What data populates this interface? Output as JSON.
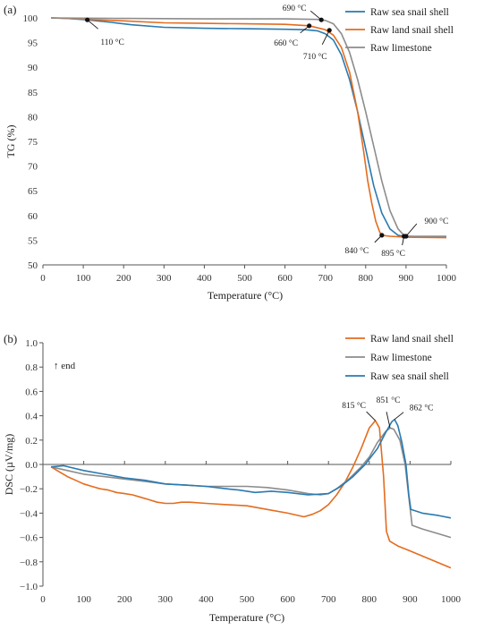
{
  "chart_data": [
    {
      "type": "line",
      "panel_label": "(a)",
      "xlabel": "Temperature (°C)",
      "ylabel": "TG (%)",
      "xlim": [
        0,
        1000
      ],
      "ylim": [
        50,
        100
      ],
      "xticks": [
        0,
        100,
        200,
        300,
        400,
        500,
        600,
        700,
        800,
        900,
        1000
      ],
      "yticks": [
        50,
        55,
        60,
        65,
        70,
        75,
        80,
        85,
        90,
        95,
        100
      ],
      "grid": false,
      "legend_position": "top-right",
      "series": [
        {
          "name": "Raw sea snail shell",
          "color": "#2a7ab0",
          "points": [
            [
              20,
              100
            ],
            [
              60,
              99.9
            ],
            [
              110,
              99.6
            ],
            [
              170,
              99.1
            ],
            [
              220,
              98.6
            ],
            [
              300,
              98.1
            ],
            [
              400,
              97.9
            ],
            [
              500,
              97.8
            ],
            [
              600,
              97.7
            ],
            [
              650,
              97.6
            ],
            [
              680,
              97.4
            ],
            [
              700,
              96.8
            ],
            [
              720,
              95.5
            ],
            [
              740,
              92.5
            ],
            [
              760,
              87.5
            ],
            [
              780,
              81
            ],
            [
              800,
              73.5
            ],
            [
              820,
              66
            ],
            [
              840,
              60.5
            ],
            [
              860,
              57.3
            ],
            [
              880,
              56
            ],
            [
              895,
              55.8
            ],
            [
              950,
              55.7
            ],
            [
              1000,
              55.7
            ]
          ]
        },
        {
          "name": "Raw land snail shell",
          "color": "#e46c1f",
          "points": [
            [
              20,
              100
            ],
            [
              60,
              99.9
            ],
            [
              110,
              99.7
            ],
            [
              200,
              99.4
            ],
            [
              300,
              99
            ],
            [
              400,
              98.9
            ],
            [
              500,
              98.8
            ],
            [
              600,
              98.7
            ],
            [
              660,
              98.4
            ],
            [
              700,
              97.6
            ],
            [
              720,
              96.5
            ],
            [
              740,
              94
            ],
            [
              760,
              89
            ],
            [
              780,
              81
            ],
            [
              795,
              73
            ],
            [
              805,
              67
            ],
            [
              815,
              62.5
            ],
            [
              825,
              58.8
            ],
            [
              835,
              56.6
            ],
            [
              840,
              56
            ],
            [
              860,
              55.8
            ],
            [
              900,
              55.6
            ],
            [
              1000,
              55.5
            ]
          ]
        },
        {
          "name": "Raw limestone",
          "color": "#8c8c8c",
          "points": [
            [
              20,
              100
            ],
            [
              200,
              99.9
            ],
            [
              400,
              99.8
            ],
            [
              600,
              99.8
            ],
            [
              680,
              99.7
            ],
            [
              700,
              99.5
            ],
            [
              720,
              98.8
            ],
            [
              740,
              96.8
            ],
            [
              760,
              93
            ],
            [
              780,
              87.5
            ],
            [
              800,
              81
            ],
            [
              820,
              74
            ],
            [
              840,
              67
            ],
            [
              860,
              61
            ],
            [
              880,
              57.3
            ],
            [
              895,
              56
            ],
            [
              900,
              55.8
            ],
            [
              950,
              55.8
            ],
            [
              1000,
              55.8
            ]
          ]
        }
      ],
      "annotations": [
        {
          "label": "110 °C",
          "x": 110,
          "y": 99.6
        },
        {
          "label": "690 °C",
          "x": 690,
          "y": 99.6
        },
        {
          "label": "660 °C",
          "x": 660,
          "y": 98.4
        },
        {
          "label": "710 °C",
          "x": 710,
          "y": 97.5
        },
        {
          "label": "840 °C",
          "x": 840,
          "y": 56
        },
        {
          "label": "895 °C",
          "x": 895,
          "y": 55.8
        },
        {
          "label": "900 °C",
          "x": 900,
          "y": 55.8
        }
      ]
    },
    {
      "type": "line",
      "panel_label": "(b)",
      "xlabel": "Temperature (°C)",
      "ylabel": "DSC (µV/mg)",
      "xlim": [
        0,
        1000
      ],
      "ylim": [
        -1.0,
        1.0
      ],
      "xticks": [
        0,
        100,
        200,
        300,
        400,
        500,
        600,
        700,
        800,
        900,
        1000
      ],
      "yticks": [
        "−1.0",
        "−0.8",
        "−0.6",
        "−0.4",
        "−0.2",
        "0.0",
        "0.2",
        "0.4",
        "0.6",
        "0.8",
        "1.0"
      ],
      "grid": false,
      "legend_position": "top-right",
      "inner_label": "↑ end",
      "series": [
        {
          "name": "Raw land snail shell",
          "color": "#e46c1f",
          "points": [
            [
              20,
              -0.02
            ],
            [
              40,
              -0.06
            ],
            [
              60,
              -0.1
            ],
            [
              80,
              -0.13
            ],
            [
              100,
              -0.16
            ],
            [
              120,
              -0.18
            ],
            [
              140,
              -0.2
            ],
            [
              160,
              -0.21
            ],
            [
              180,
              -0.23
            ],
            [
              200,
              -0.24
            ],
            [
              220,
              -0.25
            ],
            [
              240,
              -0.27
            ],
            [
              260,
              -0.29
            ],
            [
              280,
              -0.31
            ],
            [
              300,
              -0.32
            ],
            [
              320,
              -0.32
            ],
            [
              340,
              -0.31
            ],
            [
              360,
              -0.31
            ],
            [
              400,
              -0.32
            ],
            [
              450,
              -0.33
            ],
            [
              500,
              -0.34
            ],
            [
              550,
              -0.37
            ],
            [
              600,
              -0.4
            ],
            [
              640,
              -0.43
            ],
            [
              660,
              -0.41
            ],
            [
              680,
              -0.38
            ],
            [
              700,
              -0.33
            ],
            [
              720,
              -0.25
            ],
            [
              740,
              -0.15
            ],
            [
              760,
              -0.02
            ],
            [
              780,
              0.13
            ],
            [
              800,
              0.3
            ],
            [
              815,
              0.36
            ],
            [
              825,
              0.3
            ],
            [
              835,
              -0.1
            ],
            [
              842,
              -0.55
            ],
            [
              850,
              -0.63
            ],
            [
              870,
              -0.67
            ],
            [
              900,
              -0.71
            ],
            [
              950,
              -0.78
            ],
            [
              1000,
              -0.85
            ]
          ]
        },
        {
          "name": "Raw limestone",
          "color": "#8c8c8c",
          "points": [
            [
              20,
              -0.02
            ],
            [
              60,
              -0.05
            ],
            [
              100,
              -0.08
            ],
            [
              150,
              -0.1
            ],
            [
              200,
              -0.12
            ],
            [
              250,
              -0.14
            ],
            [
              300,
              -0.16
            ],
            [
              350,
              -0.17
            ],
            [
              400,
              -0.18
            ],
            [
              450,
              -0.18
            ],
            [
              500,
              -0.18
            ],
            [
              550,
              -0.19
            ],
            [
              600,
              -0.21
            ],
            [
              650,
              -0.24
            ],
            [
              680,
              -0.25
            ],
            [
              700,
              -0.24
            ],
            [
              720,
              -0.2
            ],
            [
              750,
              -0.12
            ],
            [
              780,
              -0.02
            ],
            [
              800,
              0.06
            ],
            [
              820,
              0.18
            ],
            [
              840,
              0.27
            ],
            [
              851,
              0.3
            ],
            [
              860,
              0.29
            ],
            [
              875,
              0.2
            ],
            [
              888,
              0.0
            ],
            [
              898,
              -0.3
            ],
            [
              905,
              -0.5
            ],
            [
              930,
              -0.53
            ],
            [
              970,
              -0.57
            ],
            [
              1000,
              -0.6
            ]
          ]
        },
        {
          "name": "Raw sea snail shell",
          "color": "#2a7ab0",
          "points": [
            [
              20,
              -0.02
            ],
            [
              50,
              -0.01
            ],
            [
              100,
              -0.05
            ],
            [
              150,
              -0.08
            ],
            [
              200,
              -0.11
            ],
            [
              250,
              -0.13
            ],
            [
              300,
              -0.16
            ],
            [
              350,
              -0.17
            ],
            [
              400,
              -0.18
            ],
            [
              450,
              -0.2
            ],
            [
              480,
              -0.21
            ],
            [
              520,
              -0.23
            ],
            [
              560,
              -0.22
            ],
            [
              600,
              -0.23
            ],
            [
              650,
              -0.25
            ],
            [
              700,
              -0.24
            ],
            [
              730,
              -0.18
            ],
            [
              760,
              -0.1
            ],
            [
              790,
              0.0
            ],
            [
              820,
              0.13
            ],
            [
              840,
              0.26
            ],
            [
              855,
              0.35
            ],
            [
              862,
              0.37
            ],
            [
              870,
              0.32
            ],
            [
              880,
              0.18
            ],
            [
              890,
              0.0
            ],
            [
              897,
              -0.25
            ],
            [
              902,
              -0.37
            ],
            [
              930,
              -0.4
            ],
            [
              970,
              -0.42
            ],
            [
              1000,
              -0.44
            ]
          ]
        }
      ],
      "annotations": [
        {
          "label": "815 °C",
          "x": 815,
          "y": 0.36
        },
        {
          "label": "851 °C",
          "x": 851,
          "y": 0.3
        },
        {
          "label": "862 °C",
          "x": 862,
          "y": 0.37
        }
      ]
    }
  ]
}
